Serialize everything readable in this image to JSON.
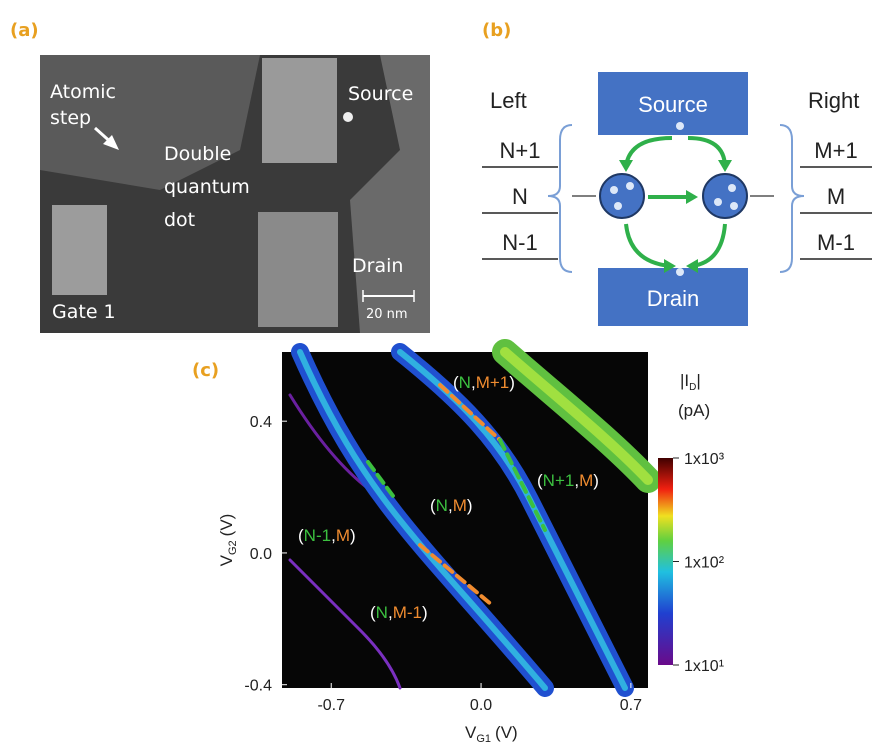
{
  "panels": {
    "a": {
      "label": "(a)",
      "atomic_step": [
        "Atomic",
        "step"
      ],
      "double_quantum_dot": [
        "Double",
        "quantum",
        "dot"
      ],
      "source": "Source",
      "drain": "Drain",
      "gate": "Gate 1",
      "scale_bar": "20 nm"
    },
    "b": {
      "label": "(b)",
      "left": {
        "title": "Left",
        "levels": [
          "N+1",
          "N",
          "N-1"
        ]
      },
      "right": {
        "title": "Right",
        "levels": [
          "M+1",
          "M",
          "M-1"
        ]
      },
      "source": "Source",
      "drain": "Drain"
    },
    "c": {
      "label": "(c)"
    }
  },
  "chart_data": {
    "type": "heatmap",
    "xlabel": {
      "text": "V",
      "sub": "G1",
      "unit": "(V)"
    },
    "ylabel": {
      "text": "V",
      "sub": "G2",
      "unit": "(V)"
    },
    "xlim": [
      -0.93,
      0.78
    ],
    "xticks": [
      -0.7,
      {
        "value": 0,
        "label": "0.0"
      },
      0.7
    ],
    "ylim": [
      -0.41,
      0.61
    ],
    "yticks": [
      0.4,
      {
        "value": 0,
        "label": "0.0"
      },
      -0.4
    ],
    "colorbar": {
      "label": {
        "text": "|I",
        "sub": "D",
        "end": "|"
      },
      "unit": "(pA)",
      "scale": "log",
      "zlim": [
        10,
        1000
      ],
      "zticks": [
        {
          "value": 1000,
          "label": "1x10³"
        },
        {
          "value": 100,
          "label": "1x10²"
        },
        {
          "value": 10,
          "label": "1x10¹"
        }
      ]
    },
    "annotations": [
      [
        "(",
        "N",
        ",",
        "M+1",
        ")"
      ],
      [
        "(",
        "N+1",
        ",",
        "M",
        ")"
      ],
      [
        "(",
        "N",
        ",",
        "M",
        ")"
      ],
      [
        "(",
        "N-1",
        ",",
        "M",
        ")"
      ],
      [
        "(",
        "N",
        ",",
        "M-1",
        ")"
      ]
    ]
  }
}
